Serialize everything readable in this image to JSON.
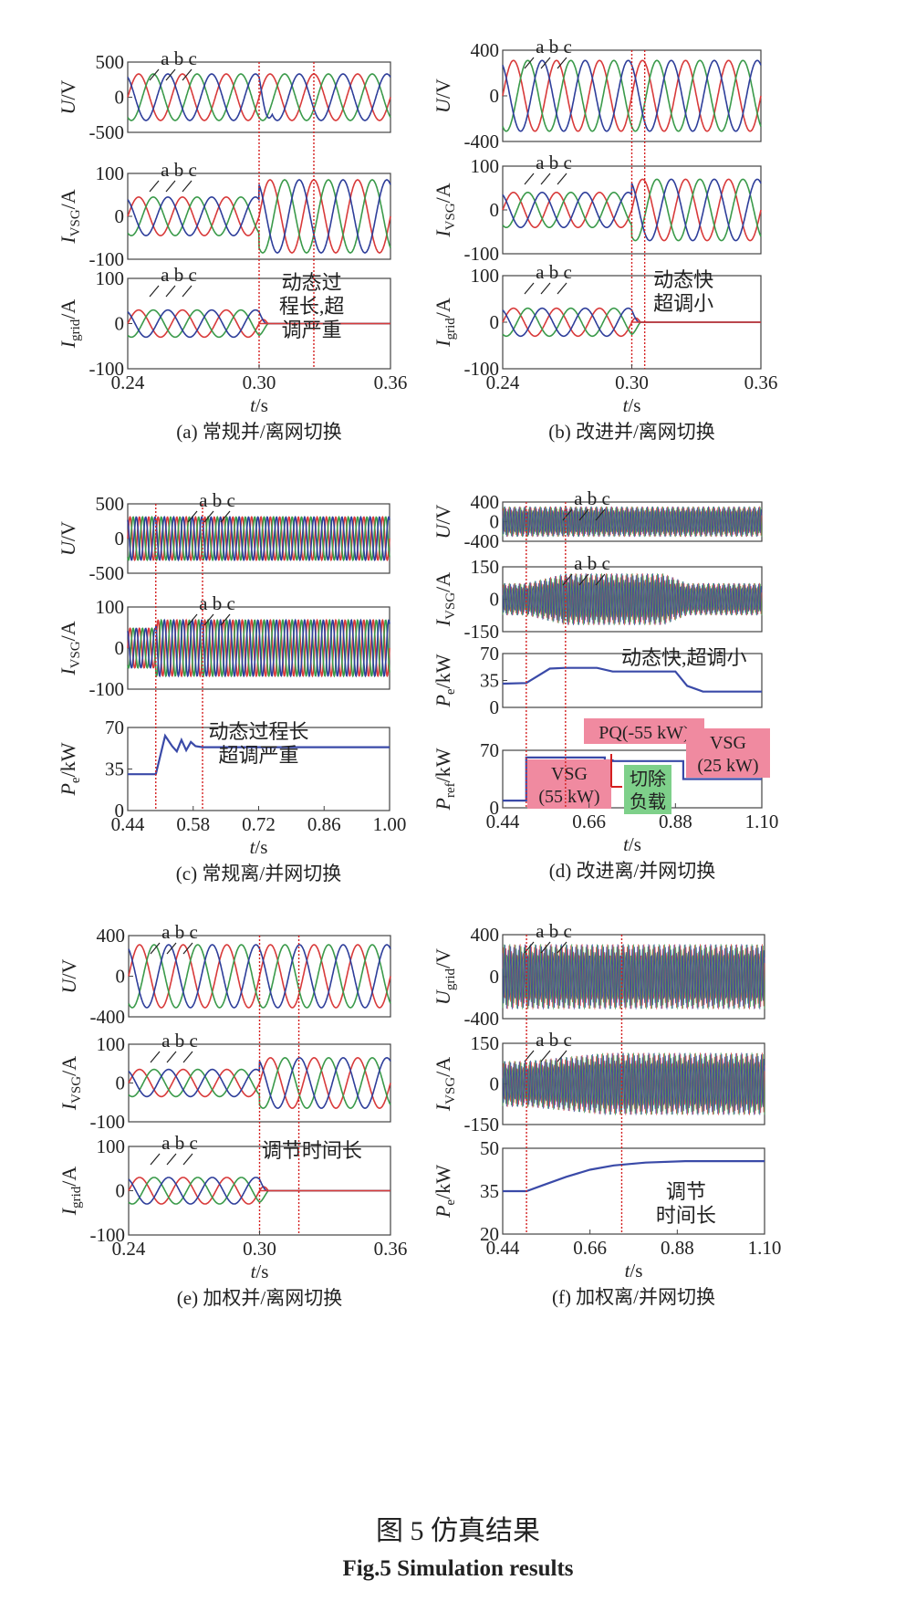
{
  "figure": {
    "caption_cn": "图 5 仿真结果",
    "caption_en": "Fig.5 Simulation results"
  },
  "panels": [
    {
      "key": "a",
      "caption": "(a) 常规并/离网切换",
      "x_ticks": [
        "0.24",
        "0.30",
        "0.36"
      ],
      "x_label": "t/s",
      "x_range": [
        0.24,
        0.36
      ],
      "event_lines": [
        0.3,
        0.325
      ],
      "subplots": [
        {
          "type": "sine3",
          "ylabel": "U/V",
          "ylabel_main": "U",
          "ylabel_sub": "",
          "ylabel_unit": "/V",
          "yticks": [
            "500",
            "0",
            "-500"
          ],
          "yrange": [
            -500,
            500
          ],
          "amp_before": 330,
          "amp_after": 330,
          "freq": 50,
          "dip": true,
          "phase_label": "a b c"
        },
        {
          "type": "sine3",
          "ylabel": "IVSG/A",
          "ylabel_main": "I",
          "ylabel_sub": "VSG",
          "ylabel_unit": "/A",
          "yticks": [
            "100",
            "0",
            "-100"
          ],
          "yrange": [
            -100,
            100
          ],
          "amp_before": 45,
          "amp_after": 85,
          "freq": 50,
          "phase_label": "a b c"
        },
        {
          "type": "sine3",
          "ylabel": "Igrid/A",
          "ylabel_main": "I",
          "ylabel_sub": "grid",
          "ylabel_unit": "/A",
          "yticks": [
            "100",
            "0",
            "-100"
          ],
          "yrange": [
            -100,
            100
          ],
          "amp_before": 30,
          "amp_after": 0,
          "freq": 50,
          "phase_label": "a b c",
          "annotation": [
            "动态过",
            "程长,超",
            "调严重"
          ]
        }
      ]
    },
    {
      "key": "b",
      "caption": "(b) 改进并/离网切换",
      "x_ticks": [
        "0.24",
        "0.30",
        "0.36"
      ],
      "x_label": "t/s",
      "x_range": [
        0.24,
        0.36
      ],
      "event_lines": [
        0.3,
        0.306
      ],
      "subplots": [
        {
          "type": "sine3",
          "ylabel": "U/V",
          "ylabel_main": "U",
          "ylabel_sub": "",
          "ylabel_unit": "/V",
          "yticks": [
            "400",
            "0",
            "-400"
          ],
          "yrange": [
            -400,
            400
          ],
          "amp_before": 310,
          "amp_after": 310,
          "freq": 50,
          "phase_label": "a b c"
        },
        {
          "type": "sine3",
          "ylabel": "IVSG/A",
          "ylabel_main": "I",
          "ylabel_sub": "VSG",
          "ylabel_unit": "/A",
          "yticks": [
            "100",
            "0",
            "-100"
          ],
          "yrange": [
            -100,
            100
          ],
          "amp_before": 40,
          "amp_after": 70,
          "freq": 50,
          "phase_label": "a b c"
        },
        {
          "type": "sine3",
          "ylabel": "Igrid/A",
          "ylabel_main": "I",
          "ylabel_sub": "grid",
          "ylabel_unit": "/A",
          "yticks": [
            "100",
            "0",
            "-100"
          ],
          "yrange": [
            -100,
            100
          ],
          "amp_before": 30,
          "amp_after": 0,
          "freq": 50,
          "phase_label": "a b c",
          "annotation": [
            "动态快",
            "超调小"
          ]
        }
      ]
    },
    {
      "key": "c",
      "caption": "(c) 常规离/并网切换",
      "x_ticks": [
        "0.44",
        "0.58",
        "0.72",
        "0.86",
        "1.00"
      ],
      "x_label": "t/s",
      "x_range": [
        0.44,
        1.0
      ],
      "event_lines": [
        0.5,
        0.6
      ],
      "subplots": [
        {
          "type": "sine3",
          "ylabel": "U/V",
          "ylabel_main": "U",
          "ylabel_sub": "",
          "ylabel_unit": "/V",
          "yticks": [
            "500",
            "0",
            "-500"
          ],
          "yrange": [
            -500,
            500
          ],
          "amp_before": 310,
          "amp_after": 310,
          "freq": 50,
          "phase_label": "a b c"
        },
        {
          "type": "sine3",
          "ylabel": "IVSG/A",
          "ylabel_main": "I",
          "ylabel_sub": "VSG",
          "ylabel_unit": "/A",
          "yticks": [
            "100",
            "0",
            "-100"
          ],
          "yrange": [
            -100,
            100
          ],
          "amp_before": 48,
          "amp_after": 68,
          "freq": 50,
          "phase_label": "a b c"
        },
        {
          "type": "power",
          "ylabel": "Pe/kW",
          "ylabel_main": "P",
          "ylabel_sub": "e",
          "ylabel_unit": "/kW",
          "yticks": [
            "70",
            "35",
            "0"
          ],
          "yrange": [
            0,
            80
          ],
          "series": {
            "x": [
              0.44,
              0.5,
              0.52,
              0.535,
              0.545,
              0.555,
              0.565,
              0.575,
              0.585,
              0.6,
              1.0
            ],
            "y": [
              35,
              35,
              72,
              62,
              57,
              68,
              58,
              66,
              62,
              61,
              61
            ]
          },
          "annotation": [
            "动态过程长",
            "超调严重"
          ]
        }
      ]
    },
    {
      "key": "d",
      "caption": "(d) 改进离/并网切换",
      "x_ticks": [
        "0.44",
        "0.66",
        "0.88",
        "1.10"
      ],
      "x_label": "t/s",
      "x_range": [
        0.44,
        1.1
      ],
      "event_lines": [
        0.5,
        0.6
      ],
      "subplots": [
        {
          "type": "band",
          "ylabel": "U/V",
          "ylabel_main": "U",
          "ylabel_sub": "",
          "ylabel_unit": "/V",
          "yticks": [
            "400",
            "0",
            "-400"
          ],
          "yrange": [
            -400,
            400
          ],
          "envelope": {
            "x": [
              0.44,
              1.1
            ],
            "y": [
              310,
              310
            ]
          },
          "phase_label": "a b c"
        },
        {
          "type": "band",
          "ylabel": "IVSG/A",
          "ylabel_main": "I",
          "ylabel_sub": "VSG",
          "ylabel_unit": "/A",
          "yticks": [
            "150",
            "0",
            "-150"
          ],
          "yrange": [
            -150,
            150
          ],
          "envelope": {
            "x": [
              0.44,
              0.5,
              0.6,
              0.85,
              0.91,
              1.1
            ],
            "y": [
              75,
              75,
              120,
              120,
              75,
              75
            ]
          },
          "phase_label": "a b c"
        },
        {
          "type": "power",
          "ylabel": "Pe/kW",
          "ylabel_main": "P",
          "ylabel_sub": "e",
          "ylabel_unit": "/kW",
          "yticks": [
            "70",
            "35",
            "0"
          ],
          "yrange": [
            0,
            75
          ],
          "series": {
            "x": [
              0.44,
              0.5,
              0.56,
              0.6,
              0.68,
              0.72,
              0.88,
              0.91,
              0.95,
              1.1
            ],
            "y": [
              33,
              34,
              54,
              55,
              55,
              50,
              50,
              30,
              22,
              22
            ]
          },
          "annotation": [
            "动态快,超调小"
          ]
        },
        {
          "type": "power",
          "ylabel": "Pref/kW",
          "ylabel_main": "P",
          "ylabel_sub": "ref",
          "ylabel_unit": "/kW",
          "yticks": [
            "70",
            "0"
          ],
          "yrange": [
            0,
            80
          ],
          "series": {
            "x": [
              0.44,
              0.5,
              0.5,
              0.7,
              0.7,
              0.72,
              0.72,
              0.9,
              0.9,
              1.1
            ],
            "y": [
              10,
              10,
              70,
              70,
              66,
              66,
              65,
              65,
              40,
              40
            ]
          },
          "boxes": [
            {
              "text": [
                "VSG",
                "(55 kW)"
              ],
              "kind": "pink"
            },
            {
              "text": [
                "PQ(-55 kW)"
              ],
              "kind": "pink"
            },
            {
              "text": [
                "VSG",
                "(25 kW)"
              ],
              "kind": "pink"
            },
            {
              "text": [
                "切除",
                "负载"
              ],
              "kind": "green"
            }
          ]
        }
      ]
    },
    {
      "key": "e",
      "caption": "(e) 加权并/离网切换",
      "x_ticks": [
        "0.24",
        "0.30",
        "0.36"
      ],
      "x_label": "t/s",
      "x_range": [
        0.24,
        0.36
      ],
      "event_lines": [
        0.3,
        0.318
      ],
      "subplots": [
        {
          "type": "sine3",
          "ylabel": "U/V",
          "ylabel_main": "U",
          "ylabel_sub": "",
          "ylabel_unit": "/V",
          "yticks": [
            "400",
            "0",
            "-400"
          ],
          "yrange": [
            -400,
            400
          ],
          "amp_before": 310,
          "amp_after": 310,
          "freq": 50,
          "phase_label": "a b c"
        },
        {
          "type": "sine3",
          "ylabel": "IVSG/A",
          "ylabel_main": "I",
          "ylabel_sub": "VSG",
          "ylabel_unit": "/A",
          "yticks": [
            "100",
            "0",
            "-100"
          ],
          "yrange": [
            -100,
            100
          ],
          "amp_before": 35,
          "amp_after": 65,
          "freq": 50,
          "phase_label": "a b c"
        },
        {
          "type": "sine3",
          "ylabel": "Igrid/A",
          "ylabel_main": "I",
          "ylabel_sub": "grid",
          "ylabel_unit": "/A",
          "yticks": [
            "100",
            "0",
            "-100"
          ],
          "yrange": [
            -100,
            100
          ],
          "amp_before": 30,
          "amp_after": 0,
          "freq": 50,
          "phase_label": "a b c",
          "annotation": [
            "调节时间长"
          ]
        }
      ]
    },
    {
      "key": "f",
      "caption": "(f) 加权离/并网切换",
      "x_ticks": [
        "0.44",
        "0.66",
        "0.88",
        "1.10"
      ],
      "x_label": "t/s",
      "x_range": [
        0.44,
        1.1
      ],
      "event_lines": [
        0.5,
        0.74
      ],
      "subplots": [
        {
          "type": "band",
          "ylabel": "Ugrid/V",
          "ylabel_main": "U",
          "ylabel_sub": "grid",
          "ylabel_unit": "/V",
          "yticks": [
            "400",
            "0",
            "-400"
          ],
          "yrange": [
            -400,
            400
          ],
          "envelope": {
            "x": [
              0.44,
              1.1
            ],
            "y": [
              310,
              310
            ]
          },
          "phase_label": "a b c"
        },
        {
          "type": "band",
          "ylabel": "IVSG/A",
          "ylabel_main": "I",
          "ylabel_sub": "VSG",
          "ylabel_unit": "/A",
          "yticks": [
            "150",
            "0",
            "-150"
          ],
          "yrange": [
            -150,
            150
          ],
          "envelope": {
            "x": [
              0.44,
              0.5,
              0.7,
              1.1
            ],
            "y": [
              85,
              85,
              115,
              115
            ]
          },
          "phase_label": "a b c"
        },
        {
          "type": "power",
          "ylabel": "Pe/kW",
          "ylabel_main": "P",
          "ylabel_sub": "e",
          "ylabel_unit": "/kW",
          "yticks": [
            "50",
            "35",
            "20"
          ],
          "yrange": [
            20,
            50
          ],
          "series": {
            "x": [
              0.44,
              0.5,
              0.54,
              0.6,
              0.66,
              0.72,
              0.8,
              0.9,
              1.1
            ],
            "y": [
              35,
              35,
              37,
              40,
              42.5,
              44,
              45,
              45.5,
              45.5
            ]
          },
          "annotation": [
            "调节",
            "时间长"
          ]
        }
      ]
    }
  ],
  "chart_data": [
    {
      "type": "line",
      "title": "(a) 常规并/离网切换",
      "xlabel": "t/s",
      "xlim": [
        0.24,
        0.36
      ],
      "series": [
        {
          "name": "U/V abc",
          "amplitude_before": 330,
          "amplitude_after": 330
        },
        {
          "name": "IVSG/A abc",
          "amplitude_before": 45,
          "amplitude_after": 85
        },
        {
          "name": "Igrid/A abc",
          "amplitude_before": 30,
          "amplitude_after": 0
        }
      ]
    },
    {
      "type": "line",
      "title": "(b) 改进并/离网切换",
      "xlabel": "t/s",
      "xlim": [
        0.24,
        0.36
      ],
      "series": [
        {
          "name": "U/V abc",
          "amplitude_before": 310,
          "amplitude_after": 310
        },
        {
          "name": "IVSG/A abc",
          "amplitude_before": 40,
          "amplitude_after": 70
        },
        {
          "name": "Igrid/A abc",
          "amplitude_before": 30,
          "amplitude_after": 0
        }
      ]
    },
    {
      "type": "line",
      "title": "(c) 常规离/并网切换",
      "xlabel": "t/s",
      "xlim": [
        0.44,
        1.0
      ],
      "series": [
        {
          "name": "Pe/kW",
          "x": [
            0.44,
            0.5,
            0.52,
            0.545,
            0.555,
            0.6,
            1.0
          ],
          "y": [
            35,
            35,
            72,
            57,
            68,
            61,
            61
          ]
        }
      ]
    },
    {
      "type": "line",
      "title": "(d) 改进离/并网切换",
      "xlabel": "t/s",
      "xlim": [
        0.44,
        1.1
      ],
      "series": [
        {
          "name": "Pe/kW",
          "x": [
            0.44,
            0.5,
            0.6,
            0.68,
            0.72,
            0.88,
            0.95,
            1.1
          ],
          "y": [
            33,
            34,
            55,
            55,
            50,
            50,
            22,
            22
          ]
        },
        {
          "name": "Pref/kW",
          "x": [
            0.44,
            0.5,
            0.7,
            0.72,
            0.9,
            1.1
          ],
          "y": [
            10,
            70,
            66,
            65,
            40,
            40
          ]
        }
      ]
    },
    {
      "type": "line",
      "title": "(e) 加权并/离网切换",
      "xlabel": "t/s",
      "xlim": [
        0.24,
        0.36
      ],
      "series": [
        {
          "name": "U/V abc",
          "amplitude_before": 310,
          "amplitude_after": 310
        },
        {
          "name": "IVSG/A abc",
          "amplitude_before": 35,
          "amplitude_after": 65
        },
        {
          "name": "Igrid/A abc",
          "amplitude_before": 30,
          "amplitude_after": 0
        }
      ]
    },
    {
      "type": "line",
      "title": "(f) 加权离/并网切换",
      "xlabel": "t/s",
      "xlim": [
        0.44,
        1.1
      ],
      "series": [
        {
          "name": "Pe/kW",
          "x": [
            0.44,
            0.5,
            0.6,
            0.72,
            0.8,
            1.1
          ],
          "y": [
            35,
            35,
            40,
            44,
            45,
            45.5
          ]
        }
      ]
    }
  ],
  "colors": {
    "phase_a": "#d83a3a",
    "phase_b": "#3a9a4a",
    "phase_c": "#2e3e9a",
    "power_line": "#3a4aa8",
    "event_line": "#d42020",
    "pink_box": "#f08aa0",
    "green_box": "#7ed08a"
  }
}
